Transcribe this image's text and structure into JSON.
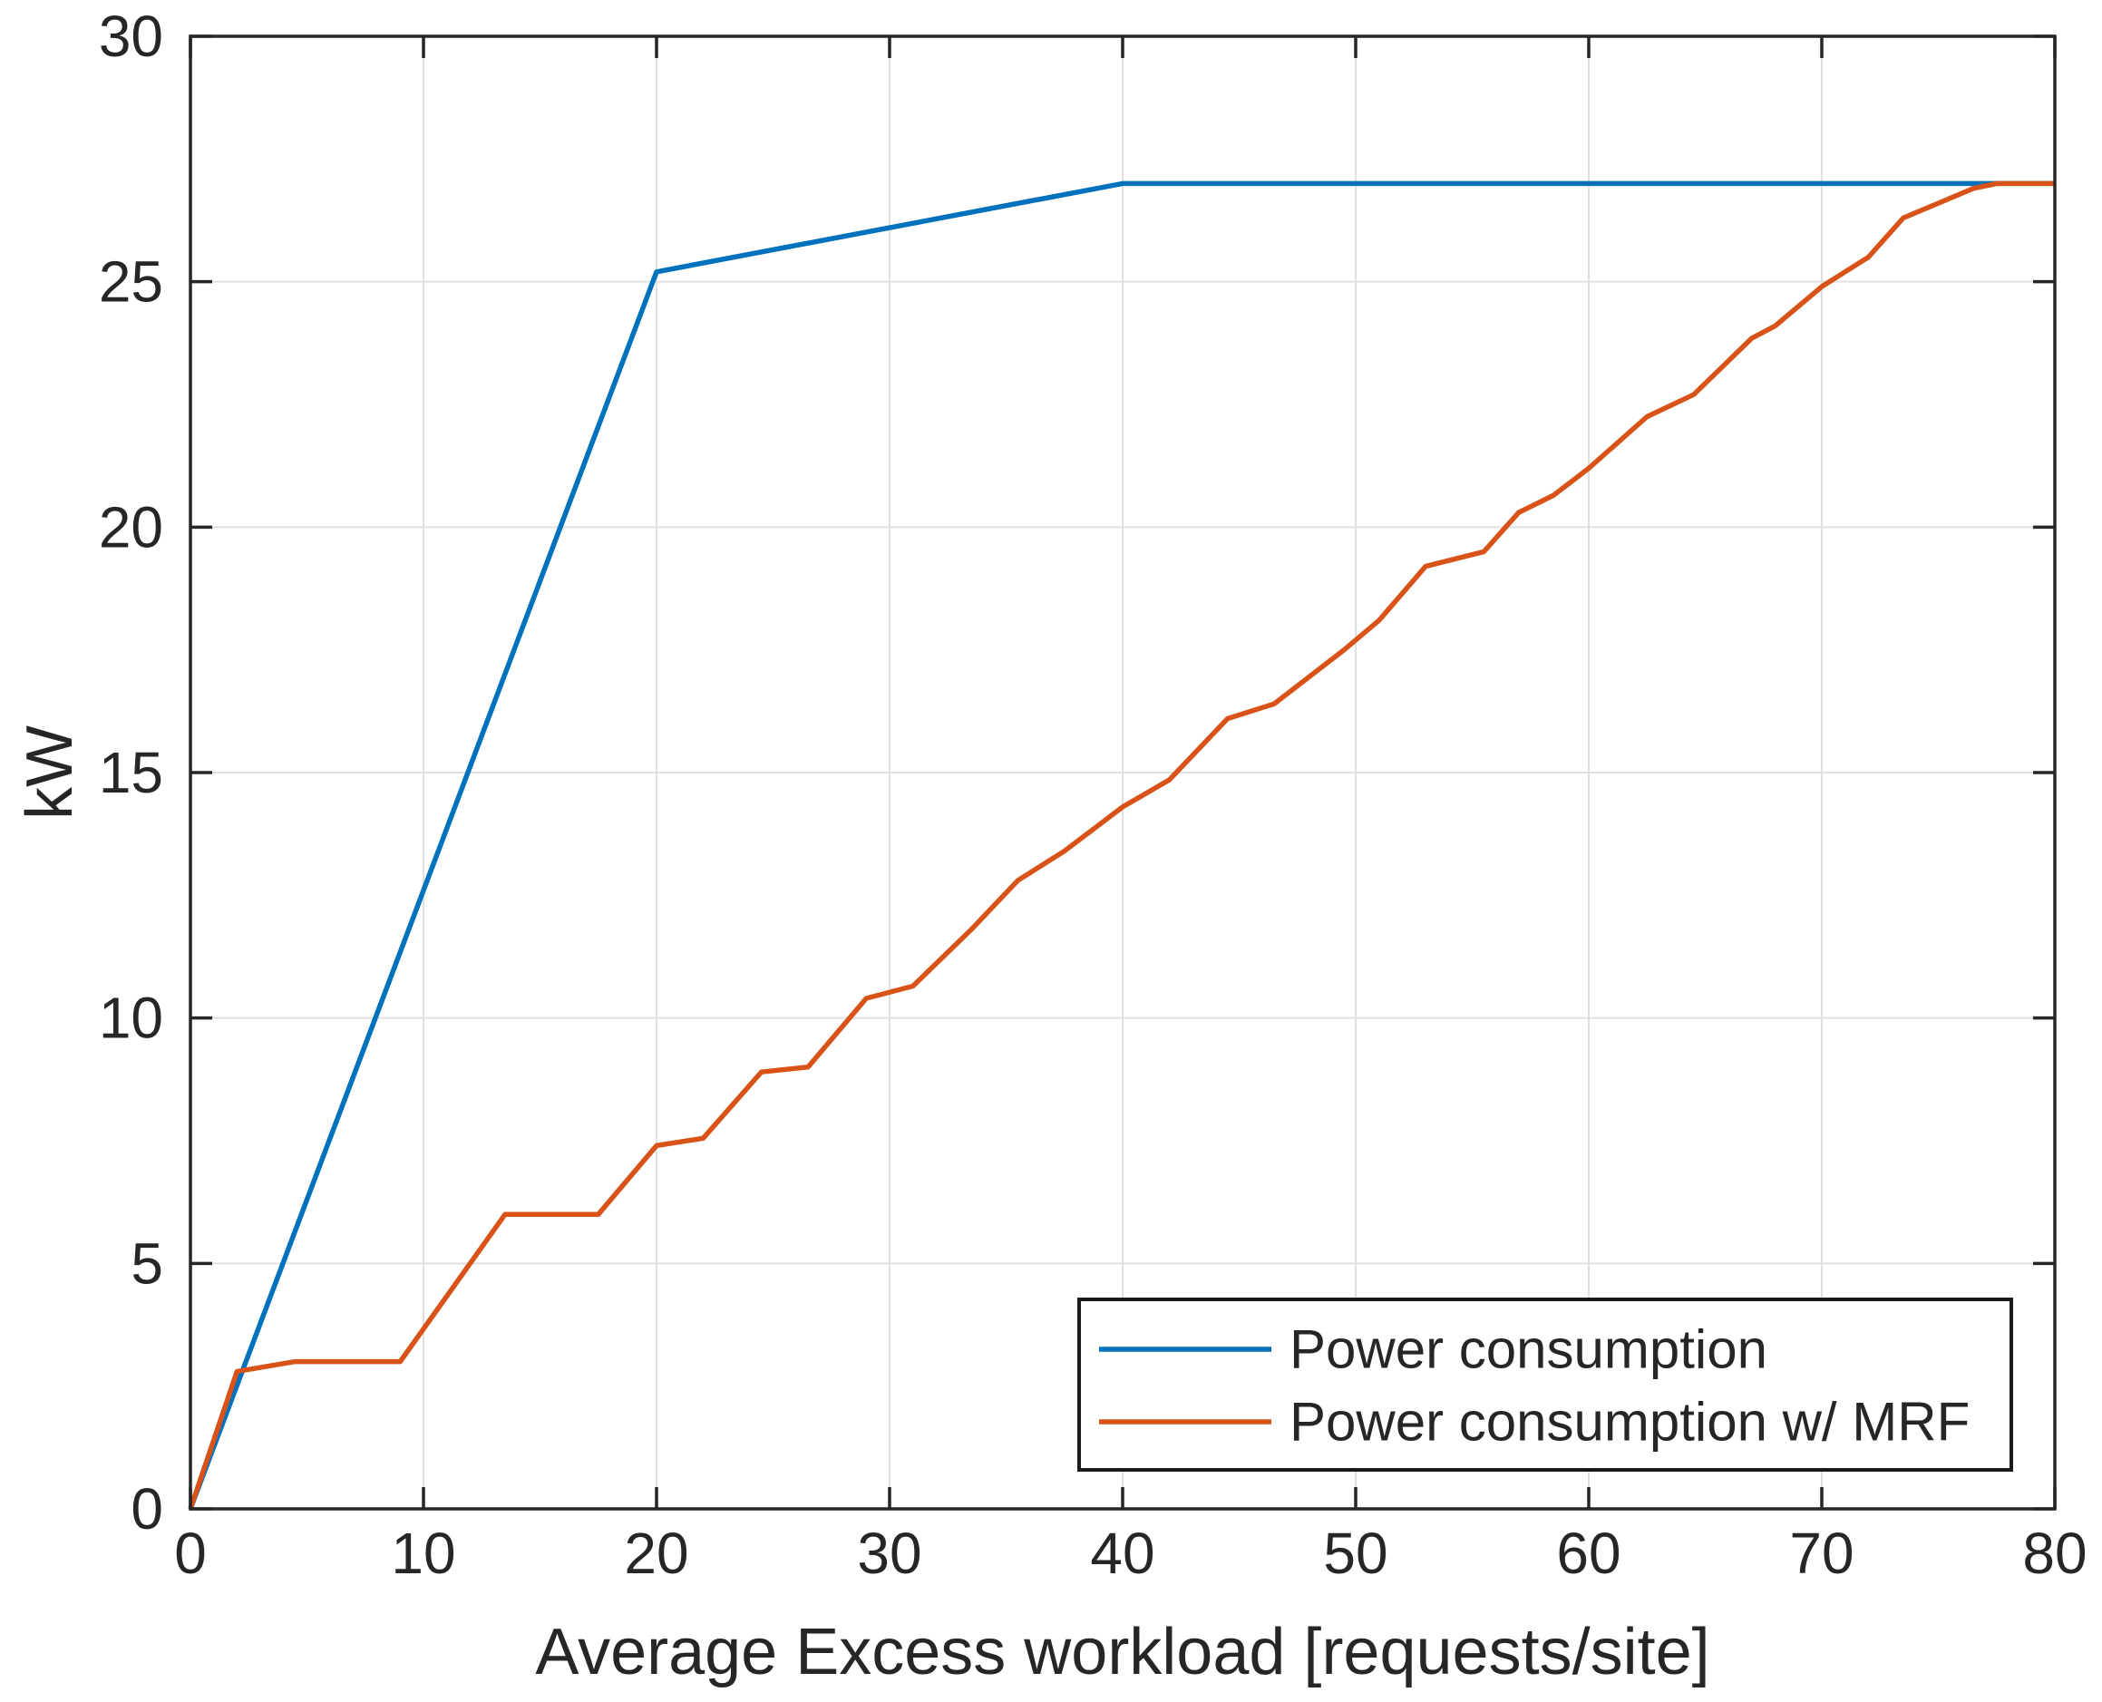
{
  "figure": {
    "background_color": "#ffffff",
    "axes_box_color": "#262626",
    "grid_color": "#e0e0e0",
    "text_color": "#262626",
    "legend_border_color": "#1a1a1a",
    "legend_background": "#ffffff"
  },
  "chart_data": {
    "type": "line",
    "title": "",
    "xlabel": "Average Excess workload [requests/site]",
    "ylabel": "kW",
    "xlim": [
      0,
      80
    ],
    "ylim": [
      0,
      30
    ],
    "xticks": [
      0,
      10,
      20,
      30,
      40,
      50,
      60,
      70,
      80
    ],
    "yticks": [
      0,
      5,
      10,
      15,
      20,
      25,
      30
    ],
    "xtick_labels": [
      "0",
      "10",
      "20",
      "30",
      "40",
      "50",
      "60",
      "70",
      "80"
    ],
    "ytick_labels": [
      "0",
      "5",
      "10",
      "15",
      "20",
      "25",
      "30"
    ],
    "grid": true,
    "legend_position": "lower-right-inside",
    "series": [
      {
        "name": "Power consumption",
        "color": "#0072BD",
        "x": [
          0,
          20,
          40,
          80
        ],
        "y": [
          0,
          25.2,
          27,
          27
        ]
      },
      {
        "name": "Power consumption w/ MRF",
        "color": "#D95319",
        "x": [
          0,
          2,
          4.5,
          9,
          13.5,
          17.5,
          20,
          22,
          24.5,
          26.5,
          29,
          31,
          33.5,
          35.5,
          37.5,
          40,
          42,
          44.5,
          46.5,
          49.5,
          51,
          53,
          55.5,
          57,
          58.5,
          60,
          62.5,
          64.5,
          67,
          68,
          70,
          72,
          73.5,
          75,
          76.5,
          77.5,
          80
        ],
        "y": [
          0,
          2.8,
          3,
          3,
          6,
          6,
          7.4,
          7.55,
          8.9,
          9,
          10.4,
          10.65,
          11.8,
          12.8,
          13.4,
          14.3,
          14.85,
          16.1,
          16.4,
          17.5,
          18.1,
          19.2,
          19.5,
          20.3,
          20.65,
          21.2,
          22.25,
          22.7,
          23.85,
          24.1,
          24.9,
          25.5,
          26.3,
          26.6,
          26.9,
          27,
          27
        ]
      }
    ]
  }
}
